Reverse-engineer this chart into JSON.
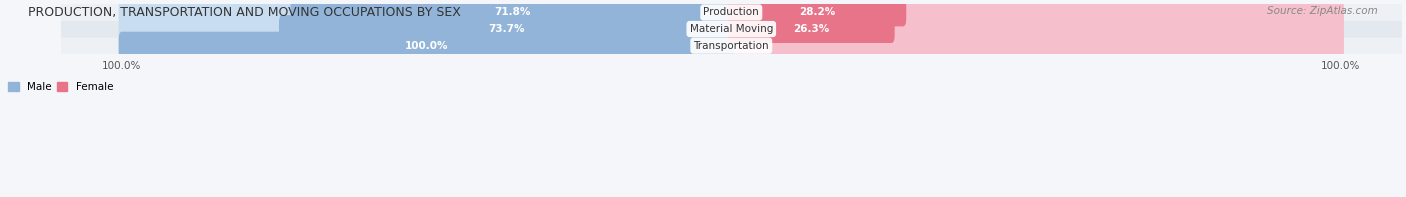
{
  "title": "PRODUCTION, TRANSPORTATION AND MOVING OCCUPATIONS BY SEX",
  "source": "Source: ZipAtlas.com",
  "categories": [
    "Transportation",
    "Material Moving",
    "Production"
  ],
  "male_values": [
    100.0,
    73.7,
    71.8
  ],
  "female_values": [
    0.0,
    26.3,
    28.2
  ],
  "male_color": "#92b4d8",
  "female_color": "#e8748a",
  "male_light_color": "#c9ddf0",
  "female_light_color": "#f5c0cc",
  "bar_bg_color": "#e8edf2",
  "row_bg_colors": [
    "#f0f3f7",
    "#e8ecf2"
  ],
  "label_color_male": "#ffffff",
  "label_color_female": "#ffffff",
  "axis_label_color": "#555555",
  "title_color": "#333333",
  "legend_male_color": "#92b4d8",
  "legend_female_color": "#e8748a",
  "figsize": [
    14.06,
    1.97
  ],
  "dpi": 100
}
